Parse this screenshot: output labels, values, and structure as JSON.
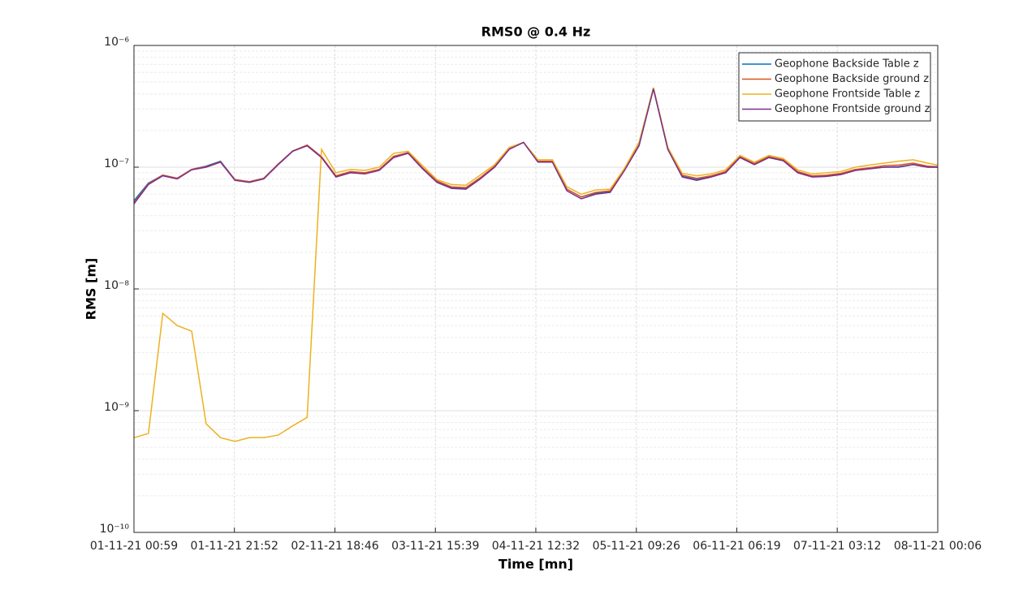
{
  "chart_data": {
    "type": "line",
    "title": "RMS0 @ 0.4 Hz",
    "x_label": "Time [mn]",
    "y_label": "RMS [m]",
    "x": [
      "01-11-21 00:59",
      "01-11-21 03:59",
      "01-11-21 06:59",
      "01-11-21 09:59",
      "01-11-21 12:59",
      "01-11-21 15:59",
      "01-11-21 18:59",
      "01-11-21 21:59",
      "02-11-21 00:59",
      "02-11-21 03:59",
      "02-11-21 06:59",
      "02-11-21 09:59",
      "02-11-21 12:59",
      "02-11-21 15:59",
      "02-11-21 18:59",
      "02-11-21 21:59",
      "03-11-21 00:59",
      "03-11-21 03:59",
      "03-11-21 06:59",
      "03-11-21 09:59",
      "03-11-21 12:59",
      "03-11-21 15:59",
      "03-11-21 18:59",
      "03-11-21 21:59",
      "04-11-21 00:59",
      "04-11-21 03:59",
      "04-11-21 06:59",
      "04-11-21 09:59",
      "04-11-21 12:59",
      "04-11-21 15:59",
      "04-11-21 18:59",
      "04-11-21 21:59",
      "05-11-21 00:59",
      "05-11-21 03:59",
      "05-11-21 06:59",
      "05-11-21 09:59",
      "05-11-21 12:59",
      "05-11-21 15:59",
      "05-11-21 18:59",
      "05-11-21 21:59",
      "06-11-21 00:59",
      "06-11-21 03:59",
      "06-11-21 06:59",
      "06-11-21 09:59",
      "06-11-21 12:59",
      "06-11-21 15:59",
      "06-11-21 18:59",
      "06-11-21 21:59",
      "07-11-21 00:59",
      "07-11-21 03:59",
      "07-11-21 06:59",
      "07-11-21 09:59",
      "07-11-21 12:59",
      "07-11-21 15:59",
      "07-11-21 18:59",
      "07-11-21 21:59",
      "08-11-21 00:06"
    ],
    "series": [
      {
        "name": "Geophone Backside Table z",
        "color": "#0072BD",
        "values": [
          5.3e-08,
          7.4e-08,
          8.6e-08,
          8.1e-08,
          9.6e-08,
          1.02e-07,
          1.12e-07,
          7.9e-08,
          7.6e-08,
          8.1e-08,
          1.06e-07,
          1.36e-07,
          1.5e-07,
          1.2e-07,
          8.4e-08,
          9.1e-08,
          8.9e-08,
          9.5e-08,
          1.21e-07,
          1.31e-07,
          9.8e-08,
          7.6e-08,
          6.8e-08,
          6.7e-08,
          8.1e-08,
          1.01e-07,
          1.41e-07,
          1.6e-07,
          1.11e-07,
          1.11e-07,
          6.6e-08,
          5.7e-08,
          6.1e-08,
          6.3e-08,
          9.5e-08,
          1.5e-07,
          4.4e-07,
          1.4e-07,
          8.4e-08,
          7.9e-08,
          8.4e-08,
          9.1e-08,
          1.2e-07,
          1.05e-07,
          1.2e-07,
          1.13e-07,
          9.1e-08,
          8.4e-08,
          8.5e-08,
          8.8e-08,
          9.5e-08,
          9.8e-08,
          1e-07,
          1.01e-07,
          1.05e-07,
          1e-07,
          1e-07
        ]
      },
      {
        "name": "Geophone Backside ground z",
        "color": "#D95319",
        "values": [
          5.1e-08,
          7.3e-08,
          8.6e-08,
          8.1e-08,
          9.6e-08,
          1.01e-07,
          1.11e-07,
          7.9e-08,
          7.6e-08,
          8.1e-08,
          1.06e-07,
          1.36e-07,
          1.52e-07,
          1.22e-07,
          8.5e-08,
          9.2e-08,
          9e-08,
          9.6e-08,
          1.23e-07,
          1.32e-07,
          9.9e-08,
          7.7e-08,
          6.9e-08,
          6.8e-08,
          8.2e-08,
          1.02e-07,
          1.42e-07,
          1.6e-07,
          1.12e-07,
          1.12e-07,
          6.6e-08,
          5.7e-08,
          6.2e-08,
          6.4e-08,
          9.6e-08,
          1.52e-07,
          4.5e-07,
          1.42e-07,
          8.6e-08,
          8.1e-08,
          8.5e-08,
          9.2e-08,
          1.22e-07,
          1.07e-07,
          1.22e-07,
          1.15e-07,
          9.2e-08,
          8.5e-08,
          8.6e-08,
          8.9e-08,
          9.6e-08,
          9.9e-08,
          1.03e-07,
          1.04e-07,
          1.08e-07,
          1.02e-07,
          1.01e-07
        ]
      },
      {
        "name": "Geophone Frontside Table z",
        "color": "#EDB120",
        "values": [
          6e-10,
          6.5e-10,
          6.3e-09,
          5e-09,
          4.5e-09,
          7.8e-10,
          6e-10,
          5.6e-10,
          6e-10,
          6e-10,
          6.3e-10,
          7.5e-10,
          8.8e-10,
          1.4e-07,
          9e-08,
          9.6e-08,
          9.4e-08,
          1e-07,
          1.3e-07,
          1.35e-07,
          1.03e-07,
          7.9e-08,
          7.2e-08,
          7.1e-08,
          8.6e-08,
          1.05e-07,
          1.45e-07,
          1.6e-07,
          1.15e-07,
          1.15e-07,
          6.9e-08,
          6e-08,
          6.5e-08,
          6.6e-08,
          9.8e-08,
          1.6e-07,
          4.5e-07,
          1.45e-07,
          8.9e-08,
          8.5e-08,
          8.8e-08,
          9.5e-08,
          1.25e-07,
          1.1e-07,
          1.25e-07,
          1.18e-07,
          9.5e-08,
          8.8e-08,
          9e-08,
          9.2e-08,
          1e-07,
          1.04e-07,
          1.08e-07,
          1.12e-07,
          1.15e-07,
          1.08e-07,
          1.04e-07
        ]
      },
      {
        "name": "Geophone Frontside ground z",
        "color": "#7E2F8E",
        "values": [
          5e-08,
          7.2e-08,
          8.5e-08,
          8e-08,
          9.5e-08,
          1e-07,
          1.1e-07,
          7.8e-08,
          7.5e-08,
          8e-08,
          1.05e-07,
          1.35e-07,
          1.5e-07,
          1.2e-07,
          8.3e-08,
          9e-08,
          8.8e-08,
          9.4e-08,
          1.2e-07,
          1.3e-07,
          9.7e-08,
          7.5e-08,
          6.7e-08,
          6.6e-08,
          8e-08,
          1e-07,
          1.4e-07,
          1.6e-07,
          1.1e-07,
          1.1e-07,
          6.4e-08,
          5.5e-08,
          6e-08,
          6.2e-08,
          9.4e-08,
          1.5e-07,
          4.4e-07,
          1.4e-07,
          8.3e-08,
          7.8e-08,
          8.3e-08,
          9e-08,
          1.2e-07,
          1.05e-07,
          1.2e-07,
          1.13e-07,
          9e-08,
          8.3e-08,
          8.4e-08,
          8.7e-08,
          9.4e-08,
          9.7e-08,
          1e-07,
          1e-07,
          1.05e-07,
          1e-07,
          1e-07
        ]
      }
    ],
    "xlim": [
      "01-11-21 00:59",
      "08-11-21 00:06"
    ],
    "xticks": [
      "01-11-21 00:59",
      "01-11-21 21:52",
      "02-11-21 18:46",
      "03-11-21 15:39",
      "04-11-21 12:32",
      "05-11-21 09:26",
      "06-11-21 06:19",
      "07-11-21 03:12",
      "08-11-21 00:06"
    ],
    "ylim": [
      1e-10,
      1e-06
    ],
    "yticks": [
      {
        "value": 1e-10,
        "label": "10⁻¹⁰"
      },
      {
        "value": 1e-09,
        "label": "10⁻⁹"
      },
      {
        "value": 1e-08,
        "label": "10⁻⁸"
      },
      {
        "value": 1e-07,
        "label": "10⁻⁷"
      },
      {
        "value": 1e-06,
        "label": "10⁻⁶"
      }
    ],
    "y_scale": "log",
    "grid": true,
    "minor_grid": true,
    "legend": "northeast"
  }
}
